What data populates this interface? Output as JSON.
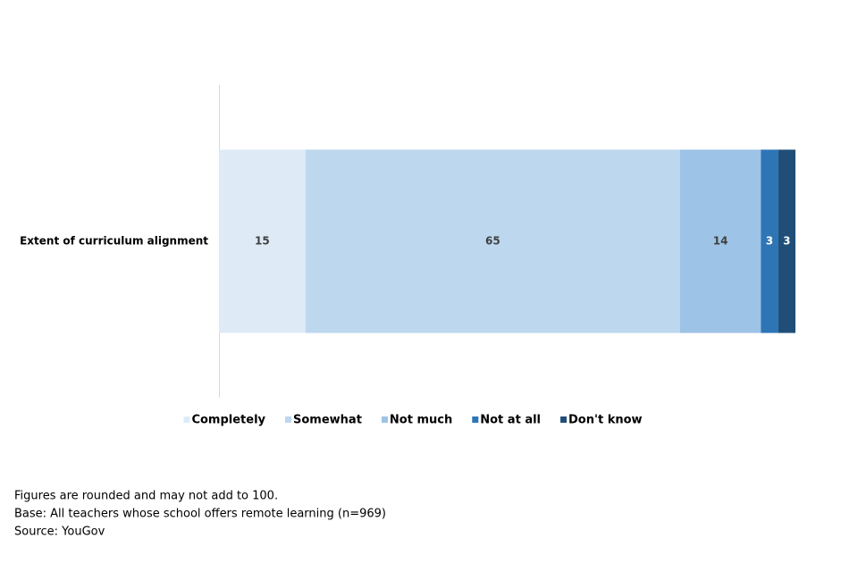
{
  "chart_data": {
    "type": "stacked-bar-horizontal",
    "categories": [
      "Extent of curriculum alignment"
    ],
    "series": [
      {
        "name": "Completely",
        "color": "#deebf7",
        "values": [
          15
        ]
      },
      {
        "name": "Somewhat",
        "color": "#bdd7ee",
        "values": [
          65
        ]
      },
      {
        "name": "Not much",
        "color": "#9dc3e6",
        "values": [
          14
        ]
      },
      {
        "name": "Not at all",
        "color": "#2e75b6",
        "values": [
          3
        ]
      },
      {
        "name": "Don't know",
        "color": "#1f4e79",
        "values": [
          3
        ]
      }
    ],
    "xlim": [
      0,
      100
    ],
    "legend": "bottom",
    "notes": [
      "Figures are rounded and may not add to 100.",
      "Base: All teachers whose school offers remote learning  (n=969)",
      "Source: YouGov"
    ]
  }
}
